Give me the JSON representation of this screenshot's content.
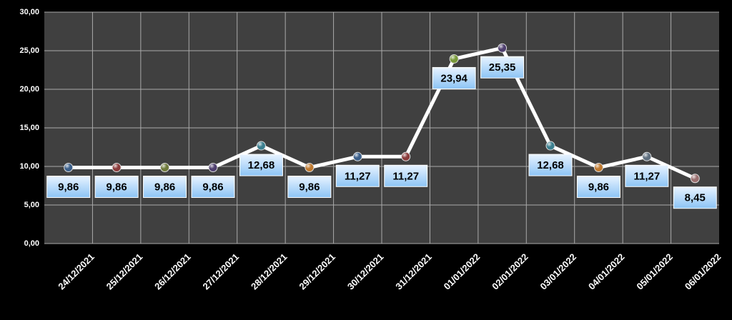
{
  "chart_data": {
    "type": "line",
    "categories": [
      "24/12/2021",
      "25/12/2021",
      "26/12/2021",
      "27/12/2021",
      "28/12/2021",
      "29/12/2021",
      "30/12/2021",
      "31/12/2021",
      "01/01/2022",
      "02/01/2022",
      "03/01/2022",
      "04/01/2022",
      "05/01/2022",
      "06/01/2022"
    ],
    "values": [
      9.86,
      9.86,
      9.86,
      9.86,
      12.68,
      9.86,
      11.27,
      11.27,
      23.94,
      25.35,
      12.68,
      9.86,
      11.27,
      8.45
    ],
    "value_labels": [
      "9,86",
      "9,86",
      "9,86",
      "9,86",
      "12,68",
      "9,86",
      "11,27",
      "11,27",
      "23,94",
      "25,35",
      "12,68",
      "9,86",
      "11,27",
      "8,45"
    ],
    "color": "#ffffff",
    "point_colors": [
      "#3b5f8a",
      "#8a3b3b",
      "#6f7a3b",
      "#4f3f6f",
      "#3b7f8f",
      "#c07a30",
      "#3b5f8a",
      "#8a3b3b",
      "#7a9a3b",
      "#4f3f6f",
      "#3b7f8f",
      "#c07a30",
      "#5f6f7f",
      "#9a6f6f"
    ],
    "ylim": [
      0,
      30
    ],
    "yticks": [
      {
        "value": 0,
        "label": "0,00"
      },
      {
        "value": 5,
        "label": "5,00"
      },
      {
        "value": 10,
        "label": "10,00"
      },
      {
        "value": 15,
        "label": "15,00"
      },
      {
        "value": 20,
        "label": "20,00"
      },
      {
        "value": 25,
        "label": "25,00"
      },
      {
        "value": 30,
        "label": "30,00"
      }
    ],
    "grid": true
  }
}
